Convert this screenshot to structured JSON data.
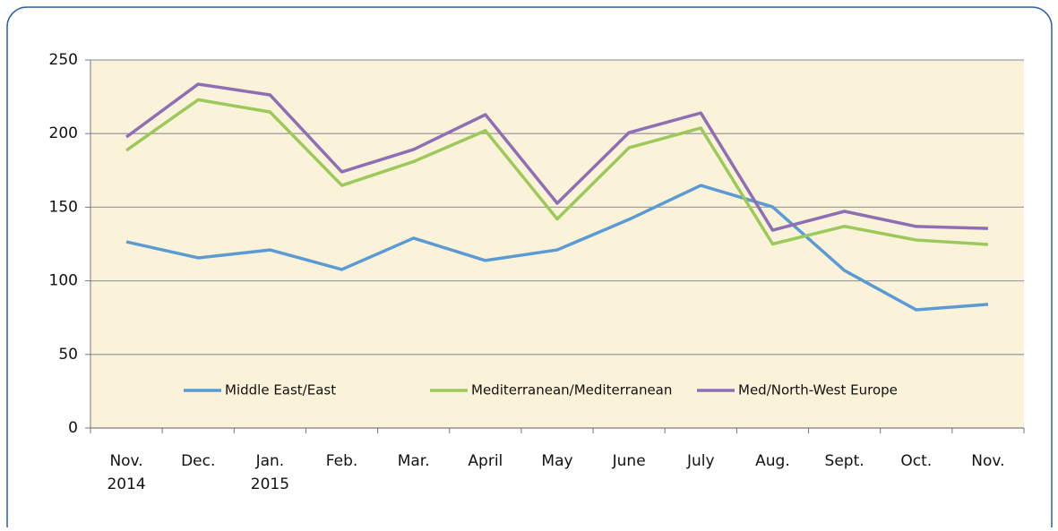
{
  "chart_data": {
    "type": "line",
    "categories": [
      "Nov. 2014",
      "Dec.",
      "Jan. 2015",
      "Feb.",
      "Mar.",
      "April",
      "May",
      "June",
      "July",
      "Aug.",
      "Sept.",
      "Oct.",
      "Nov."
    ],
    "series": [
      {
        "name": "Middle East/East",
        "color": "#5b9bd5",
        "values": [
          126.5,
          115.6,
          121,
          107.7,
          129,
          113.8,
          121,
          141.7,
          164.8,
          150.2,
          107,
          80.3,
          84
        ]
      },
      {
        "name": "Mediterranean/Mediterranean",
        "color": "#9bc95a",
        "values": [
          188.6,
          223,
          214.7,
          164.8,
          181,
          202,
          142,
          190.4,
          203.8,
          125,
          137,
          127.7,
          124.7
        ]
      },
      {
        "name": "Med/North-West Europe",
        "color": "#8e6fb5",
        "values": [
          197.7,
          233.6,
          226.3,
          174,
          189.2,
          212.9,
          152.7,
          200.7,
          214,
          134.4,
          147.2,
          136.9,
          135.6
        ]
      }
    ],
    "ylim": [
      0,
      250
    ],
    "yticks": [
      0,
      50,
      100,
      150,
      200,
      250
    ],
    "grid": true,
    "legend": "bottom"
  }
}
